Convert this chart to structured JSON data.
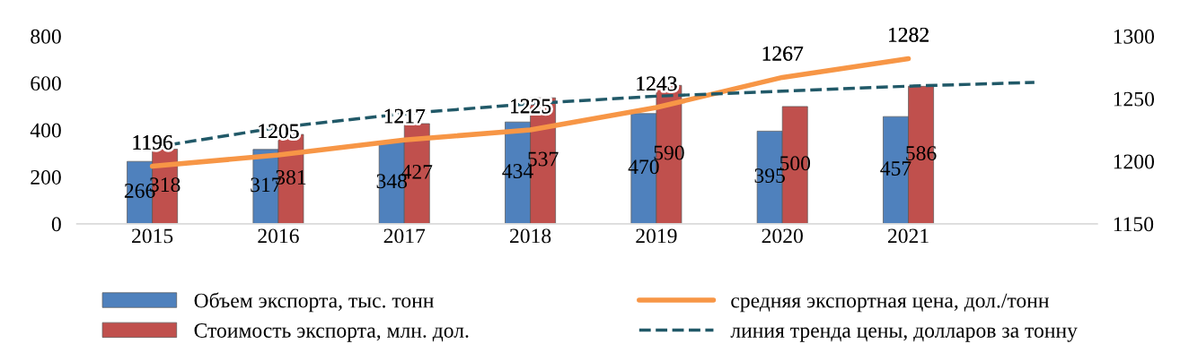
{
  "chart_data": {
    "type": "bar",
    "categories": [
      "2015",
      "2016",
      "2017",
      "2018",
      "2019",
      "2020",
      "2021",
      null
    ],
    "series": [
      {
        "name": "Объем экспорта, тыс. тонн",
        "color": "#4f81bd",
        "values": [
          266,
          317,
          348,
          434,
          470,
          395,
          457,
          null
        ],
        "value_labels": [
          "266",
          "317",
          "348",
          "434",
          "470",
          "395",
          "457",
          null
        ]
      },
      {
        "name": "Стоимость экспорта, млн. дол.",
        "color": "#c0504d",
        "values": [
          318,
          381,
          427,
          537,
          590,
          500,
          586,
          null
        ],
        "value_labels": [
          "318",
          "381",
          "427",
          "537",
          "590",
          "500",
          "586",
          null
        ]
      },
      {
        "name": "средняя экспортная цена, дол./тонн",
        "type": "line",
        "axis": "y2",
        "color": "#f79646",
        "values": [
          1196,
          1205,
          1217,
          1225,
          1243,
          1267,
          1282,
          null
        ],
        "value_labels": [
          "1196",
          "1205",
          "1217",
          "1225",
          "1243",
          "1267",
          "1282",
          null
        ]
      },
      {
        "name": "линия тренда цены, долларов за тонну",
        "type": "line",
        "axis": "y2",
        "color": "#215968",
        "line_style": "dashed",
        "values": [
          1211,
          1227,
          1238,
          1246,
          1252,
          1256,
          1260,
          1263
        ]
      }
    ],
    "ylim": [
      0,
      800
    ],
    "yticks": [
      0,
      200,
      400,
      600,
      800
    ],
    "y2lim": [
      1150,
      1300
    ],
    "y2ticks": [
      1150,
      1200,
      1250,
      1300
    ],
    "legend": "bottom",
    "grid": false
  }
}
